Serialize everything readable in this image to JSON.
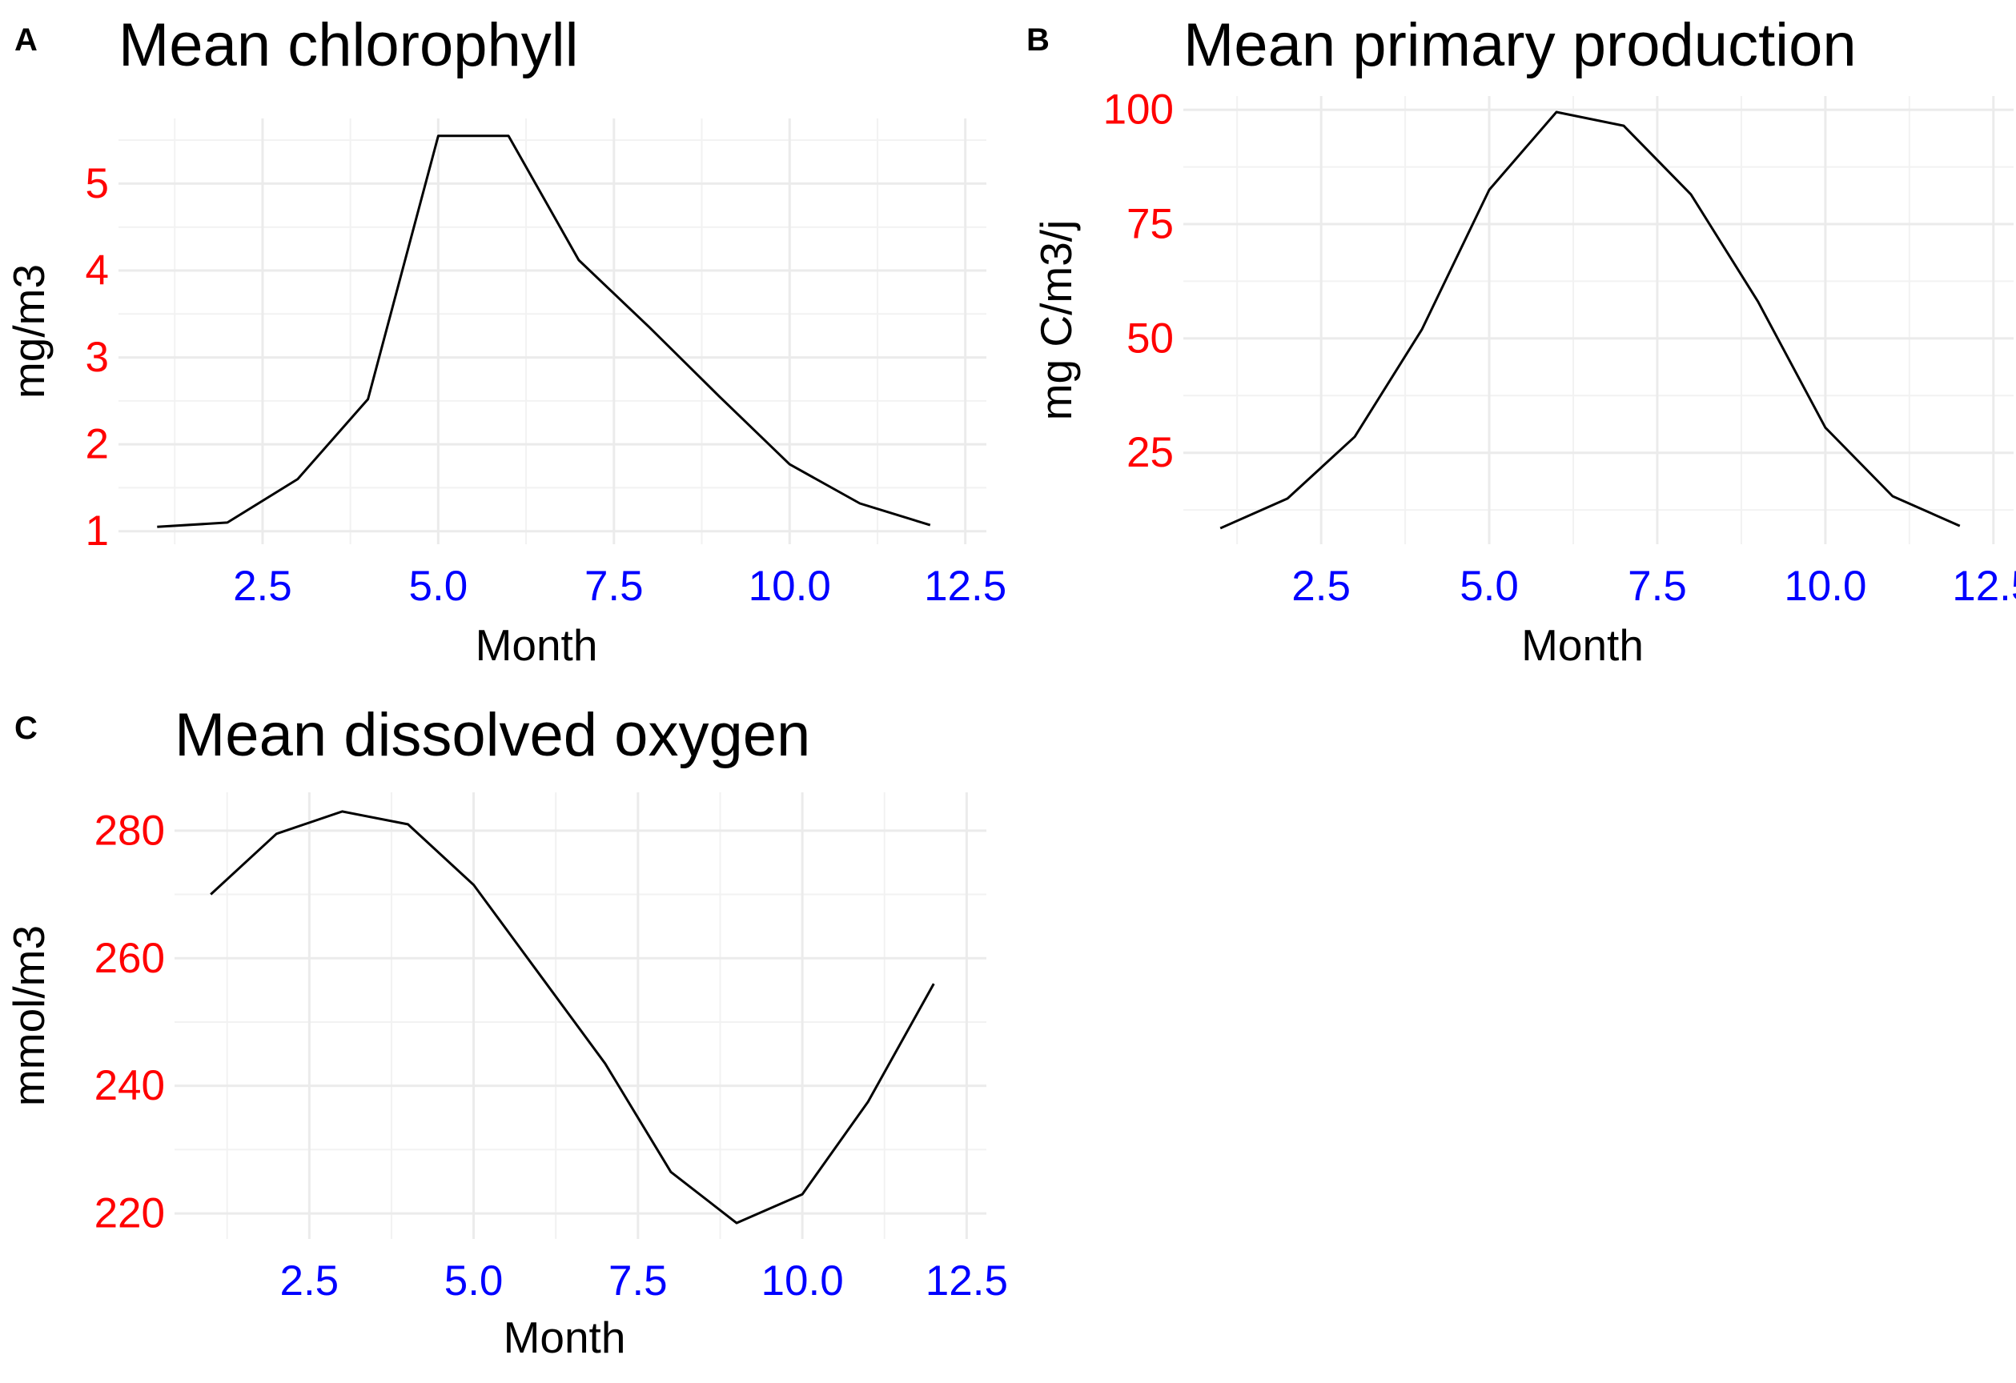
{
  "chart_data": [
    {
      "panel": "A",
      "type": "line",
      "title": "Mean chlorophyll",
      "xlabel": "Month",
      "ylabel": "mg/m3",
      "xlim": [
        0.45,
        12.8
      ],
      "ylim": [
        0.85,
        5.75
      ],
      "x_ticks": [
        2.5,
        5.0,
        7.5,
        10.0,
        12.5
      ],
      "x_tick_labels": [
        "2.5",
        "5.0",
        "7.5",
        "10.0",
        "12.5"
      ],
      "y_ticks": [
        1,
        2,
        3,
        4,
        5
      ],
      "y_tick_labels": [
        "1",
        "2",
        "3",
        "4",
        "5"
      ],
      "x": [
        1,
        2,
        3,
        4,
        5,
        6,
        7,
        8,
        9,
        10,
        11,
        12
      ],
      "y": [
        1.05,
        1.1,
        1.6,
        2.52,
        5.55,
        5.55,
        4.12,
        3.35,
        2.55,
        1.77,
        1.32,
        1.07
      ],
      "grid": true
    },
    {
      "panel": "B",
      "type": "line",
      "title": "Mean primary production",
      "xlabel": "Month",
      "ylabel": "mg C/m3/j",
      "xlim": [
        0.45,
        12.8
      ],
      "ylim": [
        5,
        103
      ],
      "x_ticks": [
        2.5,
        5.0,
        7.5,
        10.0,
        12.5
      ],
      "x_tick_labels": [
        "2.5",
        "5.0",
        "7.5",
        "10.0",
        "12.5"
      ],
      "y_ticks": [
        25,
        50,
        75,
        100
      ],
      "y_tick_labels": [
        "25",
        "50",
        "75",
        "100"
      ],
      "x": [
        1,
        2,
        3,
        4,
        5,
        6,
        7,
        8,
        9,
        10,
        11,
        12
      ],
      "y": [
        8.5,
        15,
        28.5,
        52,
        82.5,
        99.5,
        96.5,
        81.5,
        58,
        30.5,
        15.5,
        9
      ],
      "grid": true
    },
    {
      "panel": "C",
      "type": "line",
      "title": "Mean dissolved oxygen",
      "xlabel": "Month",
      "ylabel": "mmol/m3",
      "xlim": [
        0.45,
        12.8
      ],
      "ylim": [
        216,
        286
      ],
      "x_ticks": [
        2.5,
        5.0,
        7.5,
        10.0,
        12.5
      ],
      "x_tick_labels": [
        "2.5",
        "5.0",
        "7.5",
        "10.0",
        "12.5"
      ],
      "y_ticks": [
        220,
        240,
        260,
        280
      ],
      "y_tick_labels": [
        "220",
        "240",
        "260",
        "280"
      ],
      "x": [
        1,
        2,
        3,
        4,
        5,
        6,
        7,
        8,
        9,
        10,
        11,
        12
      ],
      "y": [
        270,
        279.5,
        283,
        281,
        271.5,
        257.5,
        243.5,
        226.5,
        218.5,
        223,
        237.5,
        256
      ],
      "grid": true
    }
  ],
  "colors": {
    "y_tick_color": "#ff0000",
    "x_tick_color": "#0000ff",
    "line_color": "#000000",
    "grid_color": "#ebebeb"
  }
}
